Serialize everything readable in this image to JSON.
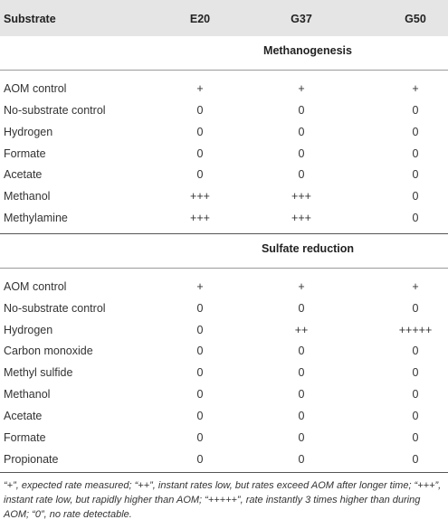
{
  "header": {
    "substrate": "Substrate",
    "e20": "E20",
    "g37": "G37",
    "g50": "G50"
  },
  "sections": [
    {
      "title": "Methanogenesis",
      "rows": [
        {
          "substrate": "AOM control",
          "e20": "+",
          "g37": "+",
          "g50": "+"
        },
        {
          "substrate": "No-substrate control",
          "e20": "0",
          "g37": "0",
          "g50": "0"
        },
        {
          "substrate": "Hydrogen",
          "e20": "0",
          "g37": "0",
          "g50": "0"
        },
        {
          "substrate": "Formate",
          "e20": "0",
          "g37": "0",
          "g50": "0"
        },
        {
          "substrate": "Acetate",
          "e20": "0",
          "g37": "0",
          "g50": "0"
        },
        {
          "substrate": "Methanol",
          "e20": "+++",
          "g37": "+++",
          "g50": "0"
        },
        {
          "substrate": "Methylamine",
          "e20": "+++",
          "g37": "+++",
          "g50": "0"
        }
      ]
    },
    {
      "title": "Sulfate reduction",
      "rows": [
        {
          "substrate": "AOM control",
          "e20": "+",
          "g37": "+",
          "g50": "+"
        },
        {
          "substrate": "No-substrate control",
          "e20": "0",
          "g37": "0",
          "g50": "0"
        },
        {
          "substrate": "Hydrogen",
          "e20": "0",
          "g37": "++",
          "g50": "+++++"
        },
        {
          "substrate": "Carbon monoxide",
          "e20": "0",
          "g37": "0",
          "g50": "0"
        },
        {
          "substrate": "Methyl sulfide",
          "e20": "0",
          "g37": "0",
          "g50": "0"
        },
        {
          "substrate": "Methanol",
          "e20": "0",
          "g37": "0",
          "g50": "0"
        },
        {
          "substrate": "Acetate",
          "e20": "0",
          "g37": "0",
          "g50": "0"
        },
        {
          "substrate": "Formate",
          "e20": "0",
          "g37": "0",
          "g50": "0"
        },
        {
          "substrate": "Propionate",
          "e20": "0",
          "g37": "0",
          "g50": "0"
        }
      ]
    }
  ],
  "footnote": "“+”, expected rate measured; “++”, instant rates low, but rates exceed AOM after longer time; “+++”, instant rate low, but rapidly higher than AOM; “+++++”, rate instantly 3 times higher than during AOM; “0”, no rate detectable."
}
